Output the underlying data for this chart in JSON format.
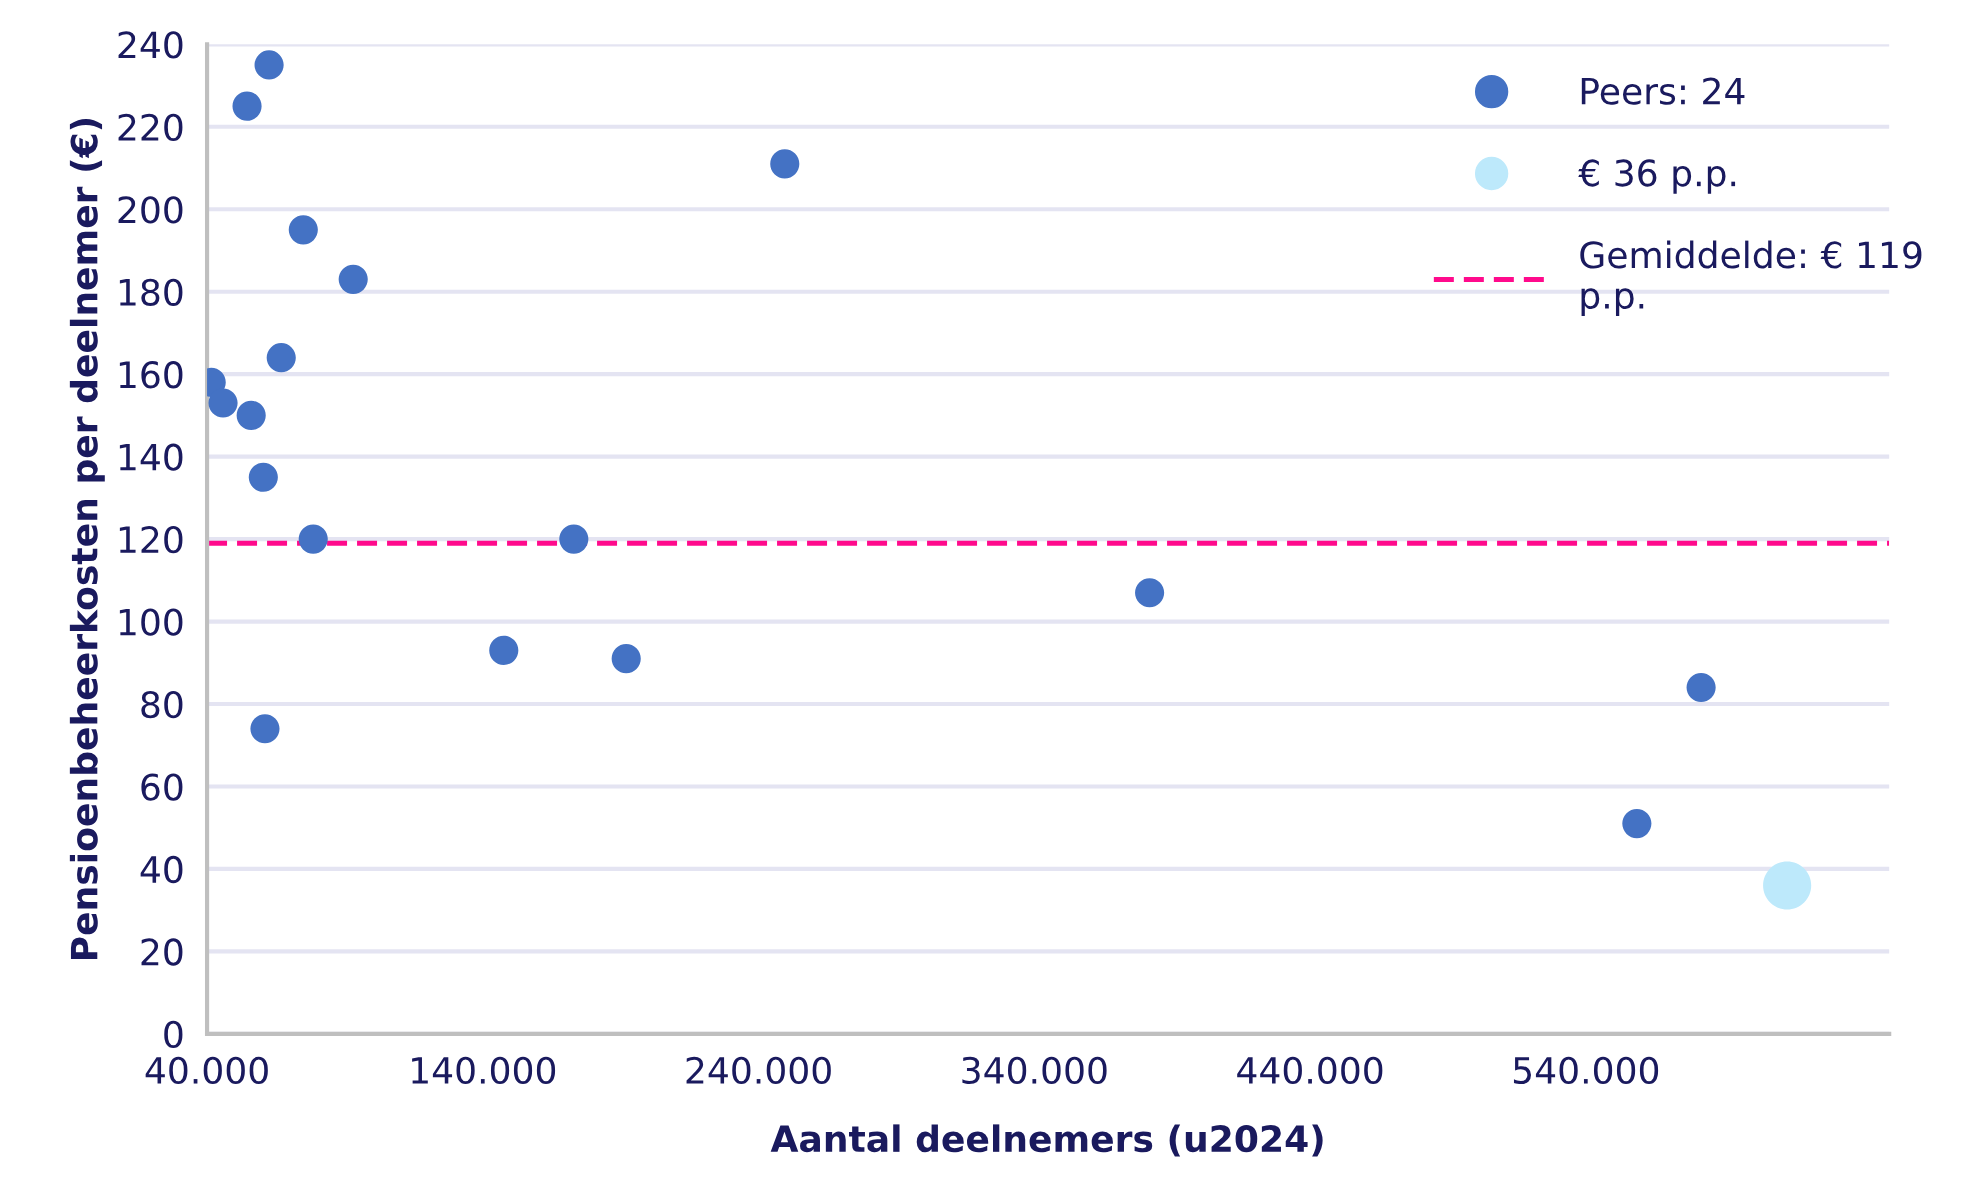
{
  "chart_data": {
    "type": "scatter",
    "xlabel": "Aantal deelnemers (u2024)",
    "ylabel": "Pensioenbeheerkosten per deelnemer (€)",
    "xlim": [
      40000,
      650000
    ],
    "xticks": [
      {
        "value": 40000,
        "label": "40.000"
      },
      {
        "value": 140000,
        "label": "140.000"
      },
      {
        "value": 240000,
        "label": "240.000"
      },
      {
        "value": 340000,
        "label": "340.000"
      },
      {
        "value": 440000,
        "label": "440.000"
      },
      {
        "value": 540000,
        "label": "540.000"
      }
    ],
    "ylim": [
      0,
      240
    ],
    "yticks": [
      0,
      20,
      40,
      60,
      80,
      100,
      120,
      140,
      160,
      180,
      200,
      220,
      240
    ],
    "grid": "y",
    "legend": "top right",
    "marker": "circle",
    "series": [
      {
        "name": "Peers: 24",
        "color": "#4472c4",
        "x": [
          41500,
          45800,
          54500,
          62500,
          56000,
          60400,
          66900,
          74900,
          78500,
          61000,
          93000,
          147600,
          173000,
          192000,
          249500,
          381800,
          558500,
          581800
        ],
        "values": [
          158,
          153,
          225,
          235,
          150,
          135,
          164,
          195,
          120,
          74,
          183,
          93,
          120,
          91,
          211,
          107,
          51,
          84
        ]
      },
      {
        "name": "€ 36 p.p.",
        "color": "#bde9fb",
        "x": [
          613000
        ],
        "values": [
          36
        ]
      }
    ],
    "ref_lines": [
      {
        "axis": "y",
        "value": 119,
        "label": "Gemiddelde: € 119\np.p.",
        "color": "#ff0a8c",
        "line_style": "dashed"
      }
    ]
  }
}
